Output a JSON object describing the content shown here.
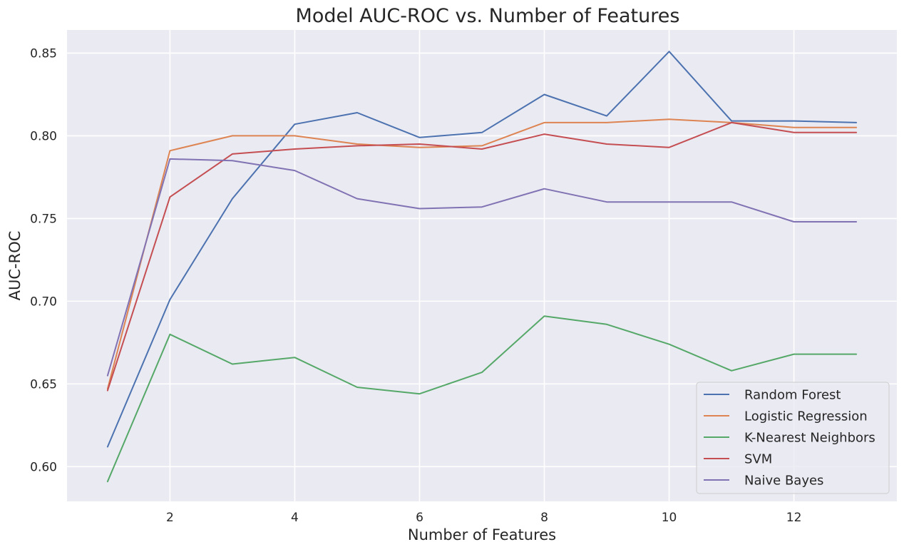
{
  "chart_data": {
    "type": "line",
    "title": "Model AUC-ROC vs. Number of Features",
    "xlabel": "Number of Features",
    "ylabel": "AUC-ROC",
    "xlim": [
      0.35,
      13.65
    ],
    "ylim": [
      0.579,
      0.864
    ],
    "xticks": [
      2,
      4,
      6,
      8,
      10,
      12
    ],
    "yticks": [
      0.6,
      0.65,
      0.7,
      0.75,
      0.8,
      0.85
    ],
    "ytick_labels": [
      "0.60",
      "0.65",
      "0.70",
      "0.75",
      "0.80",
      "0.85"
    ],
    "grid": true,
    "legend_position": "bottom-right",
    "x": [
      1,
      2,
      3,
      4,
      5,
      6,
      7,
      8,
      9,
      10,
      11,
      12,
      13
    ],
    "series": [
      {
        "name": "Random Forest",
        "color": "#4c72b0",
        "values": [
          0.612,
          0.701,
          0.762,
          0.807,
          0.814,
          0.799,
          0.802,
          0.825,
          0.812,
          0.851,
          0.809,
          0.809,
          0.808
        ]
      },
      {
        "name": "Logistic Regression",
        "color": "#dd8452",
        "values": [
          0.647,
          0.791,
          0.8,
          0.8,
          0.795,
          0.793,
          0.794,
          0.808,
          0.808,
          0.81,
          0.808,
          0.805,
          0.805
        ]
      },
      {
        "name": "K-Nearest Neighbors",
        "color": "#55a868",
        "values": [
          0.591,
          0.68,
          0.662,
          0.666,
          0.648,
          0.644,
          0.657,
          0.691,
          0.686,
          0.674,
          0.658,
          0.668,
          0.668
        ]
      },
      {
        "name": "SVM",
        "color": "#c44e52",
        "values": [
          0.646,
          0.763,
          0.789,
          0.792,
          0.794,
          0.795,
          0.792,
          0.801,
          0.795,
          0.793,
          0.808,
          0.802,
          0.802
        ]
      },
      {
        "name": "Naive Bayes",
        "color": "#8172b3",
        "values": [
          0.655,
          0.786,
          0.785,
          0.779,
          0.762,
          0.756,
          0.757,
          0.768,
          0.76,
          0.76,
          0.76,
          0.748,
          0.748
        ]
      }
    ]
  }
}
